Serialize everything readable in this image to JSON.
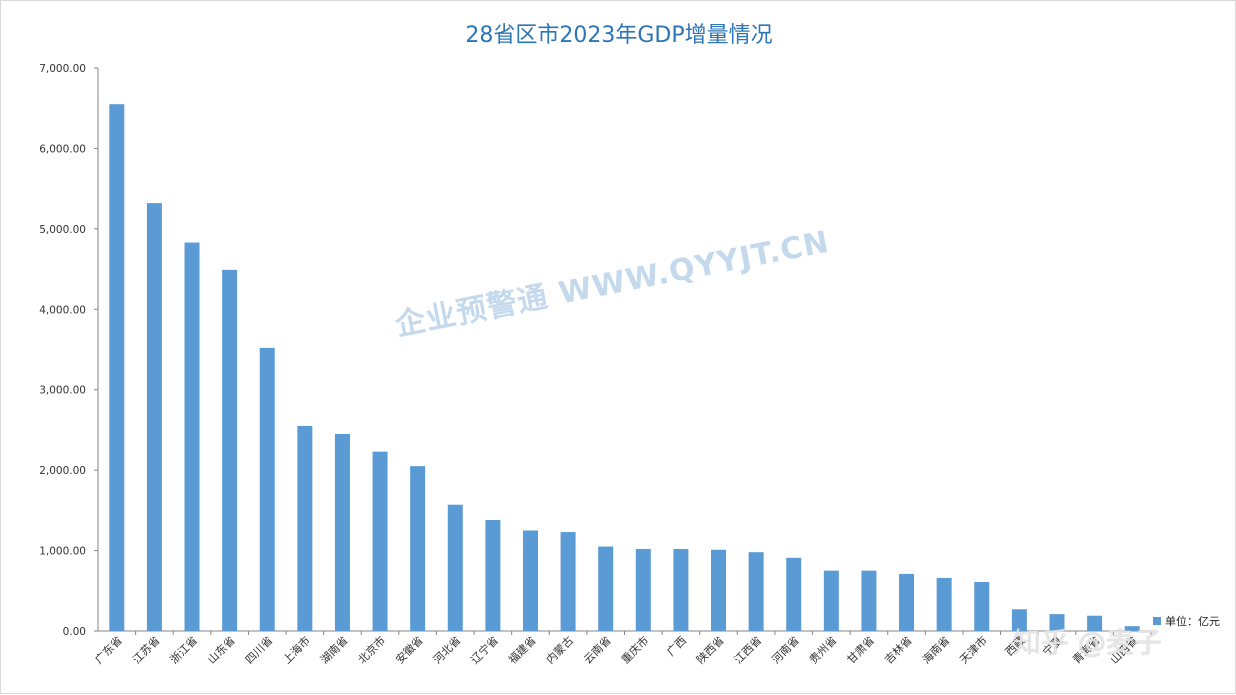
{
  "chart_data": {
    "type": "bar",
    "title": "28省区市2023年GDP增量情况",
    "xlabel": "",
    "ylabel": "",
    "ylim": [
      0,
      7000
    ],
    "yticks": [
      "0.00",
      "1,000.00",
      "2,000.00",
      "3,000.00",
      "4,000.00",
      "5,000.00",
      "6,000.00",
      "7,000.00"
    ],
    "grid": false,
    "legend_position": "bottom-right",
    "categories": [
      "广东省",
      "江苏省",
      "浙江省",
      "山东省",
      "四川省",
      "上海市",
      "湖南省",
      "北京市",
      "安徽省",
      "河北省",
      "辽宁省",
      "福建省",
      "内蒙古",
      "云南省",
      "重庆市",
      "广西",
      "陕西省",
      "江西省",
      "河南省",
      "贵州省",
      "甘肃省",
      "吉林省",
      "海南省",
      "天津市",
      "西藏",
      "宁夏",
      "青海省",
      "山西省"
    ],
    "series": [
      {
        "name": "单位：亿元",
        "color": "#5b9bd5",
        "values": [
          6550,
          5320,
          4830,
          4490,
          3520,
          2550,
          2450,
          2230,
          2050,
          1570,
          1380,
          1250,
          1230,
          1050,
          1020,
          1020,
          1010,
          980,
          910,
          750,
          750,
          710,
          660,
          610,
          270,
          210,
          190,
          60
        ]
      }
    ]
  },
  "watermark": {
    "text": "企业预警通 WWW.QYYJT.CN",
    "color": "#bcd3ea"
  },
  "overlay": {
    "text": "知乎 @麦子"
  }
}
